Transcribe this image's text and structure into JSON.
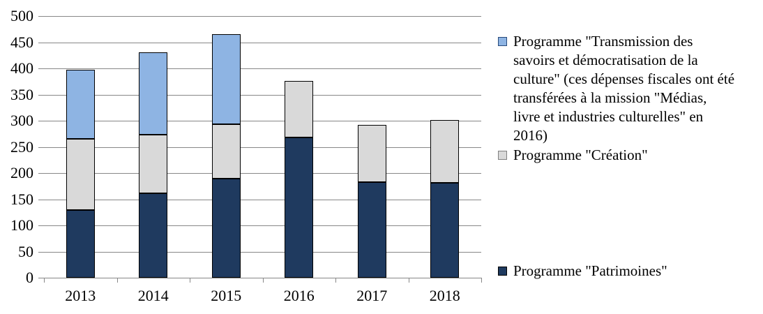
{
  "chart_data": {
    "type": "bar",
    "stacked": true,
    "title": "",
    "xlabel": "",
    "ylabel": "",
    "categories": [
      "2013",
      "2014",
      "2015",
      "2016",
      "2017",
      "2018"
    ],
    "series": [
      {
        "name": "Programme \"Patrimoines\"",
        "values": [
          130,
          162,
          190,
          268,
          183,
          181
        ],
        "color": "#1F3A5F",
        "swatch_border": "#000000"
      },
      {
        "name": "Programme \"Création\"",
        "values": [
          135,
          112,
          104,
          108,
          109,
          121
        ],
        "color": "#D9D9D9",
        "swatch_border": "#808080"
      },
      {
        "name": "Programme \"Transmission des savoirs et démocratisation de la culture\" (ces dépenses fiscales ont été transférées à la mission \"Médias, livre et industries culturelles\" en 2016)",
        "values": [
          132,
          157,
          172,
          0,
          0,
          0
        ],
        "color": "#8EB4E3",
        "swatch_border": "#27497A"
      }
    ],
    "stack_totals": [
      397,
      431,
      466,
      376,
      292,
      302
    ],
    "ylim": [
      0,
      500
    ],
    "ytick_step": 50,
    "grid": true,
    "grid_color": "#878787",
    "bar_border_color": "#000000",
    "legend_position": "right",
    "legend_order": [
      2,
      1,
      0
    ]
  }
}
